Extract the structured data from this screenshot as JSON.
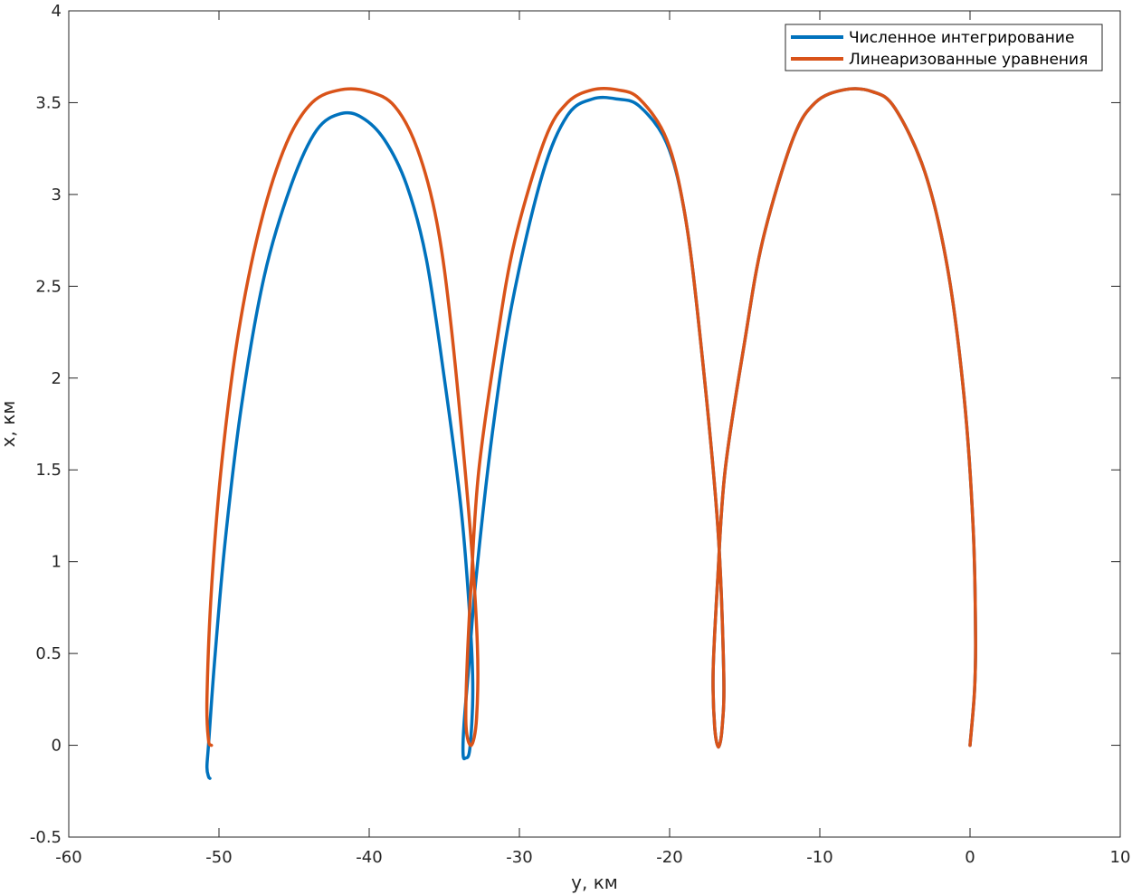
{
  "chart_data": {
    "type": "line",
    "title": "",
    "xlabel": "y, км",
    "ylabel": "x, км",
    "xlim": [
      -60,
      10
    ],
    "ylim": [
      -0.5,
      4
    ],
    "xticks": [
      -60,
      -50,
      -40,
      -30,
      -20,
      -10,
      0,
      10
    ],
    "yticks": [
      -0.5,
      0,
      0.5,
      1,
      1.5,
      2,
      2.5,
      3,
      3.5,
      4
    ],
    "xtick_labels": [
      "-60",
      "-50",
      "-40",
      "-30",
      "-20",
      "-10",
      "0",
      "10"
    ],
    "ytick_labels": [
      "-0.5",
      "0",
      "0.5",
      "1",
      "1.5",
      "2",
      "2.5",
      "3",
      "3.5",
      "4"
    ],
    "grid": false,
    "legend_position": "top-right",
    "series": [
      {
        "name": "Численное интегрирование",
        "color": "#0072BD",
        "x": [
          0.0,
          0.3,
          0.37,
          0.2,
          -0.4,
          -1.5,
          -3.0,
          -5.0,
          -6.5,
          -8.38,
          -10.3,
          -11.8,
          -13.8,
          -15.0,
          -16.3,
          -16.8,
          -17.1,
          -17.0,
          -16.75,
          -16.5,
          -16.4,
          -16.8,
          -18.0,
          -19.0,
          -20.2,
          -22.0,
          -23.5,
          -25.13,
          -26.8,
          -28.5,
          -30.5,
          -31.8,
          -32.9,
          -33.4,
          -33.7,
          -33.75,
          -33.6,
          -33.3,
          -33.1,
          -33.3,
          -33.9,
          -35.0,
          -36.2,
          -37.5,
          -39.0,
          -40.5,
          -41.89,
          -43.5,
          -45.2,
          -47.0,
          -48.5,
          -49.6,
          -50.3,
          -50.7,
          -50.8,
          -50.7,
          -50.6
        ],
        "y": [
          0.0,
          0.3,
          0.6,
          1.2,
          1.9,
          2.6,
          3.12,
          3.47,
          3.56,
          3.57,
          3.5,
          3.3,
          2.75,
          2.2,
          1.5,
          0.9,
          0.4,
          0.1,
          -0.01,
          0.1,
          0.4,
          1.2,
          2.25,
          2.9,
          3.28,
          3.48,
          3.52,
          3.52,
          3.43,
          3.1,
          2.4,
          1.7,
          0.9,
          0.4,
          0.1,
          -0.05,
          -0.07,
          -0.02,
          0.3,
          0.7,
          1.3,
          2.0,
          2.65,
          3.05,
          3.3,
          3.42,
          3.44,
          3.35,
          3.05,
          2.55,
          1.85,
          1.1,
          0.45,
          0.0,
          -0.12,
          -0.17,
          -0.18
        ]
      },
      {
        "name": "Линеаризованные уравнения",
        "color": "#D95319",
        "x": [
          0.0,
          0.3,
          0.37,
          0.2,
          -0.4,
          -1.5,
          -3.0,
          -5.0,
          -6.5,
          -8.38,
          -10.3,
          -11.8,
          -13.8,
          -15.0,
          -16.3,
          -16.8,
          -17.1,
          -17.0,
          -16.75,
          -16.5,
          -16.4,
          -16.8,
          -18.0,
          -19.0,
          -20.2,
          -22.0,
          -23.5,
          -25.13,
          -26.8,
          -28.3,
          -30.3,
          -31.5,
          -32.7,
          -33.2,
          -33.5,
          -33.55,
          -33.2,
          -32.85,
          -32.8,
          -33.3,
          -34.5,
          -35.5,
          -36.8,
          -38.3,
          -40.0,
          -41.89,
          -43.8,
          -45.5,
          -47.2,
          -48.7,
          -49.8,
          -50.5,
          -50.8,
          -50.7,
          -50.5
        ],
        "y": [
          0.0,
          0.3,
          0.6,
          1.2,
          1.9,
          2.6,
          3.12,
          3.47,
          3.56,
          3.57,
          3.5,
          3.3,
          2.75,
          2.2,
          1.5,
          0.9,
          0.4,
          0.1,
          -0.01,
          0.1,
          0.4,
          1.2,
          2.25,
          2.9,
          3.3,
          3.52,
          3.57,
          3.57,
          3.5,
          3.3,
          2.75,
          2.2,
          1.5,
          0.9,
          0.4,
          0.1,
          0.0,
          0.15,
          0.55,
          1.2,
          2.25,
          2.85,
          3.25,
          3.48,
          3.56,
          3.57,
          3.5,
          3.28,
          2.85,
          2.25,
          1.55,
          0.85,
          0.25,
          0.03,
          0.0
        ]
      }
    ]
  }
}
